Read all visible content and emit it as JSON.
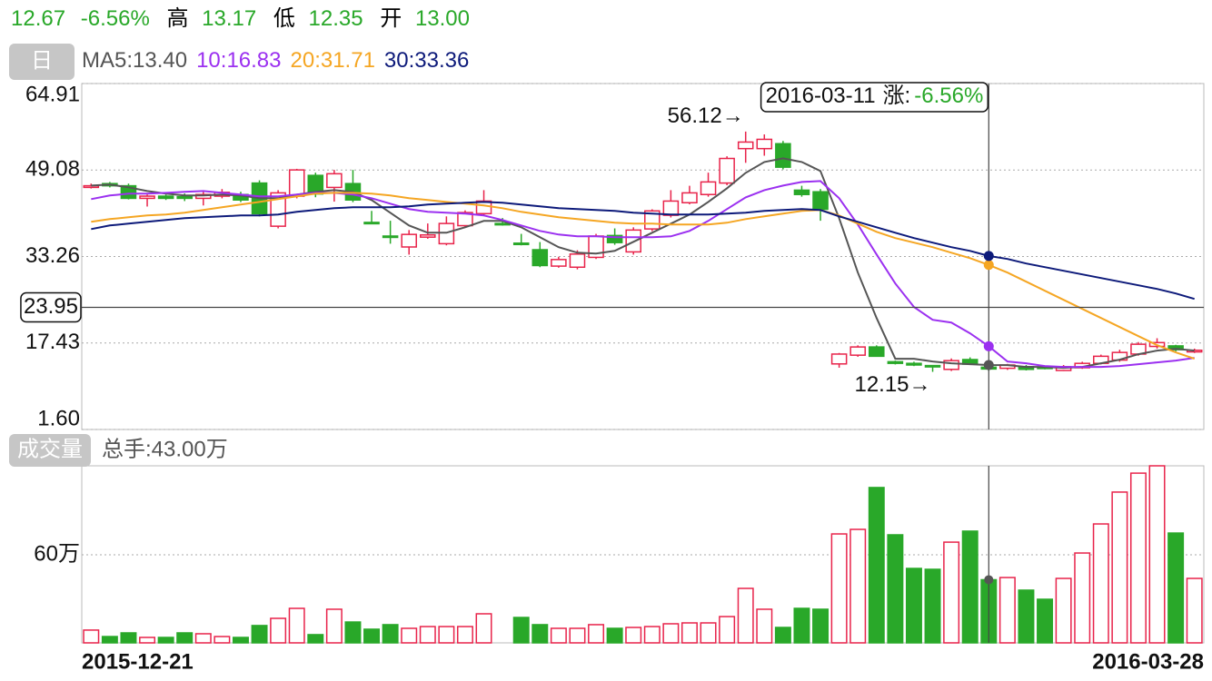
{
  "header": {
    "price": "12.67",
    "change": "-6.56%",
    "high_label": "高",
    "high": "13.17",
    "low_label": "低",
    "low": "12.35",
    "open_label": "开",
    "open": "13.00",
    "period": "日"
  },
  "chart_data": [
    {
      "type": "candlestick",
      "categories": [
        "2015-12-21",
        null,
        null,
        null,
        null,
        null,
        null,
        null,
        null,
        null,
        null,
        null,
        null,
        null,
        null,
        null,
        null,
        null,
        null,
        null,
        null,
        null,
        null,
        null,
        null,
        null,
        null,
        null,
        null,
        null,
        null,
        null,
        null,
        null,
        null,
        null,
        null,
        null,
        null,
        null,
        null,
        null,
        null,
        null,
        null,
        null,
        null,
        null,
        null,
        null,
        null,
        null,
        null,
        null,
        null,
        null,
        null,
        null,
        null,
        "2016-03-28"
      ],
      "open": [
        45.9,
        46.6,
        46.2,
        43.9,
        44.3,
        44.2,
        43.9,
        44.3,
        44.6,
        46.7,
        38.8,
        44.3,
        48.1,
        45.9,
        46.6,
        39.5,
        37.0,
        35.0,
        36.8,
        35.6,
        38.9,
        41.1,
        39.3,
        35.7,
        34.5,
        31.5,
        31.3,
        33.1,
        37.1,
        34.1,
        38.3,
        40.8,
        43.1,
        44.6,
        46.7,
        53.0,
        53.0,
        53.9,
        45.4,
        45.1,
        13.6,
        15.2,
        16.7,
        14.0,
        13.7,
        13.3,
        12.6,
        14.4,
        13.0,
        12.8,
        13.1,
        13.0,
        12.4,
        12.9,
        13.7,
        14.3,
        15.4,
        16.8,
        16.9,
        15.8
      ],
      "high": [
        46.6,
        46.9,
        46.6,
        44.6,
        44.6,
        44.8,
        45.1,
        45.6,
        45.1,
        47.2,
        45.4,
        49.3,
        48.6,
        49.1,
        49.1,
        41.6,
        39.8,
        38.1,
        39.3,
        40.6,
        41.7,
        45.4,
        40.3,
        37.4,
        35.9,
        33.2,
        34.4,
        37.4,
        38.4,
        38.6,
        41.9,
        45.4,
        46.2,
        48.6,
        51.6,
        56.12,
        55.6,
        54.4,
        46.2,
        45.6,
        15.6,
        17.0,
        17.0,
        14.2,
        14.0,
        13.4,
        14.6,
        14.8,
        13.17,
        13.6,
        13.4,
        13.3,
        13.4,
        14.0,
        15.3,
        16.2,
        17.6,
        18.3,
        17.1,
        16.4
      ],
      "low": [
        45.7,
        45.9,
        43.7,
        42.4,
        43.6,
        43.4,
        42.6,
        43.9,
        43.2,
        40.6,
        38.4,
        43.9,
        44.1,
        43.3,
        43.2,
        39.2,
        35.6,
        33.6,
        36.5,
        35.3,
        38.6,
        40.8,
        38.9,
        35.3,
        31.3,
        31.2,
        30.9,
        32.8,
        35.4,
        33.6,
        37.9,
        40.4,
        42.8,
        44.2,
        46.3,
        50.4,
        51.7,
        49.2,
        44.2,
        39.8,
        12.9,
        14.9,
        14.9,
        13.5,
        13.2,
        12.15,
        12.3,
        13.5,
        12.35,
        12.5,
        12.4,
        12.6,
        12.3,
        12.7,
        13.5,
        14.0,
        15.1,
        16.4,
        15.9,
        15.6
      ],
      "close": [
        46.2,
        46.2,
        43.9,
        44.3,
        43.9,
        43.9,
        44.6,
        45.0,
        43.6,
        41.1,
        44.9,
        49.1,
        44.7,
        48.4,
        43.6,
        39.4,
        36.9,
        37.3,
        37.2,
        39.3,
        41.3,
        43.4,
        39.2,
        35.6,
        31.6,
        32.7,
        33.7,
        37.0,
        35.8,
        38.1,
        41.6,
        43.4,
        44.9,
        46.9,
        51.2,
        54.2,
        54.7,
        49.6,
        44.6,
        41.9,
        15.4,
        16.7,
        15.0,
        13.7,
        13.4,
        13.2,
        14.2,
        13.56,
        12.67,
        13.4,
        12.6,
        12.8,
        13.1,
        13.7,
        15.0,
        15.7,
        17.2,
        17.5,
        16.2,
        16.1
      ],
      "up_color": "#e8234a",
      "down_color": "#29a829",
      "series": [
        {
          "name": "MA5:13.40",
          "color": "#555555",
          "values": [
            46.24,
            46.41,
            45.91,
            45.24,
            44.75,
            44.42,
            44.42,
            44.58,
            44.42,
            43.92,
            43.92,
            44.58,
            45.08,
            45.41,
            45.08,
            43.59,
            41.26,
            38.94,
            37.61,
            37.61,
            38.61,
            39.77,
            39.77,
            38.61,
            36.78,
            34.96,
            33.96,
            33.8,
            34.29,
            35.95,
            37.61,
            39.27,
            40.93,
            43.25,
            45.74,
            48.56,
            50.55,
            51.22,
            50.55,
            48.9,
            40.27,
            30.31,
            22.01,
            14.54,
            14.54,
            14.05,
            13.71,
            13.55,
            13.4,
            13.38,
            13.05,
            13.05,
            12.88,
            13.05,
            13.71,
            14.38,
            15.37,
            16.04,
            16.37,
            16.04
          ]
        },
        {
          "name": "10:16.83",
          "color": "#9b30f0",
          "values": [
            43.75,
            44.42,
            44.75,
            44.75,
            44.91,
            45.08,
            45.24,
            44.91,
            44.58,
            44.25,
            44.25,
            44.58,
            44.91,
            44.91,
            44.58,
            43.92,
            42.92,
            41.93,
            41.43,
            41.26,
            41.1,
            40.77,
            39.93,
            38.94,
            37.94,
            37.28,
            36.95,
            36.95,
            36.78,
            36.78,
            36.78,
            36.95,
            37.94,
            39.77,
            41.93,
            44.08,
            45.41,
            46.24,
            46.9,
            47.07,
            43.92,
            39.1,
            33.63,
            28.32,
            24.01,
            21.68,
            21.18,
            19.19,
            16.83,
            14.05,
            13.71,
            13.22,
            13.05,
            13.05,
            13.05,
            13.22,
            13.55,
            13.88,
            14.21,
            14.71
          ]
        },
        {
          "name": "20:31.71",
          "color": "#f5a623",
          "values": [
            39.6,
            40.1,
            40.43,
            40.76,
            40.93,
            41.26,
            41.76,
            42.26,
            42.76,
            43.25,
            43.75,
            44.25,
            44.75,
            44.91,
            44.91,
            44.75,
            44.42,
            43.92,
            43.59,
            43.25,
            42.92,
            42.59,
            42.09,
            41.43,
            40.93,
            40.43,
            40.1,
            39.77,
            39.44,
            39.27,
            39.27,
            39.1,
            39.1,
            39.1,
            39.44,
            40.1,
            40.6,
            41.1,
            41.59,
            41.76,
            40.76,
            39.27,
            37.78,
            36.62,
            35.79,
            34.96,
            33.96,
            32.96,
            31.71,
            30.31,
            28.65,
            26.99,
            25.33,
            23.67,
            22.01,
            20.35,
            18.69,
            17.03,
            15.71,
            14.54
          ]
        },
        {
          "name": "30:33.36",
          "color": "#0d1a7a",
          "values": [
            38.27,
            38.94,
            39.27,
            39.6,
            39.93,
            40.27,
            40.43,
            40.6,
            40.76,
            40.76,
            40.93,
            41.43,
            41.76,
            42.09,
            42.26,
            42.26,
            42.26,
            42.42,
            42.76,
            42.92,
            43.09,
            43.25,
            43.09,
            42.76,
            42.42,
            42.09,
            41.93,
            41.76,
            41.59,
            41.26,
            41.1,
            40.93,
            40.93,
            40.93,
            41.1,
            41.26,
            41.59,
            41.76,
            41.93,
            41.76,
            40.6,
            39.6,
            38.61,
            37.61,
            36.62,
            35.79,
            34.96,
            34.29,
            33.36,
            32.8,
            31.97,
            31.31,
            30.64,
            29.98,
            29.31,
            28.65,
            27.99,
            27.32,
            26.49,
            25.49
          ]
        }
      ],
      "ylim": [
        1.6,
        64.91
      ],
      "yticks": [
        64.91,
        49.08,
        33.26,
        17.43,
        {
          "value": 1.6,
          "label": "1.60"
        }
      ],
      "grid": true,
      "max_annotation": "56.12→",
      "min_annotation": "12.15→",
      "crosshair": {
        "index": 48,
        "value": 23.95,
        "date": "2016-03-11",
        "change_label": "涨:",
        "change": "-6.56%"
      }
    },
    {
      "type": "bar",
      "title": "成交量",
      "subtitle": "总手:43.00万",
      "values": [
        8.7,
        4.3,
        6.8,
        3.7,
        3.7,
        6.8,
        6.2,
        4.3,
        3.7,
        11.8,
        16.7,
        23.5,
        5.6,
        22.9,
        14.2,
        9.3,
        12.4,
        9.9,
        11.1,
        11.1,
        11.1,
        19.8,
        null,
        17.3,
        12.4,
        9.9,
        9.9,
        12.4,
        9.9,
        10.5,
        11.1,
        13.0,
        13.6,
        13.6,
        17.9,
        37.1,
        22.9,
        10.5,
        23.5,
        22.9,
        74.2,
        77.3,
        105.8,
        73.6,
        50.7,
        50.1,
        68.6,
        76.1,
        43,
        44.5,
        35.9,
        29.7,
        43.9,
        61.2,
        81.0,
        102.7,
        115.6,
        120.6,
        74.8,
        43.9
      ],
      "ylim": [
        0,
        120.6
      ],
      "yticks": [
        {
          "value": 60,
          "label": "60万"
        }
      ],
      "grid": true
    }
  ]
}
